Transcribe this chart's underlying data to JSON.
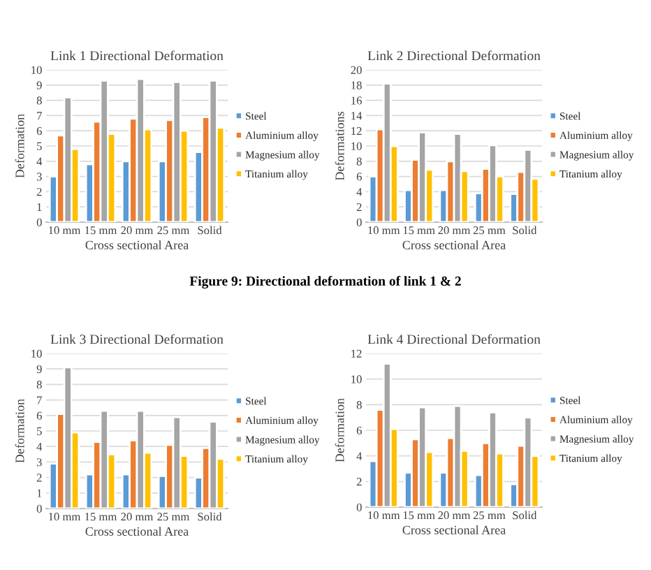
{
  "chart_data": [
    {
      "type": "bar",
      "title": "Link 1 Directional Deformation",
      "xlabel": "Cross sectional Area",
      "ylabel": "Deformation",
      "categories": [
        "10 mm",
        "15 mm",
        "20 mm",
        "25 mm",
        "Solid"
      ],
      "ylim": [
        0,
        10
      ],
      "yticks": [
        0,
        1,
        2,
        3,
        4,
        5,
        6,
        7,
        8,
        9,
        10
      ],
      "grid": "y",
      "legend": "right",
      "annotations": [
        "Figure 9: Directional deformation of link 1 & 2"
      ],
      "series": [
        {
          "name": "Steel",
          "color": "#5b9bd5",
          "values": [
            3.0,
            3.8,
            4.0,
            4.0,
            4.6
          ]
        },
        {
          "name": "Aluminium alloy",
          "color": "#ed7d31",
          "values": [
            5.7,
            6.6,
            6.8,
            6.7,
            6.9
          ]
        },
        {
          "name": "Magnesium alloy",
          "color": "#a5a5a5",
          "values": [
            8.2,
            9.3,
            9.4,
            9.2,
            9.3
          ]
        },
        {
          "name": "Titanium alloy",
          "color": "#ffc000",
          "values": [
            4.8,
            5.8,
            6.1,
            6.0,
            6.2
          ]
        }
      ]
    },
    {
      "type": "bar",
      "title": "Link 2 Directional Deformation",
      "xlabel": "Cross sectional Area",
      "ylabel": "Deformations",
      "categories": [
        "10 mm",
        "15 mm",
        "20 mm",
        "25 mm",
        "Solid"
      ],
      "ylim": [
        0,
        20
      ],
      "yticks": [
        0,
        2,
        4,
        6,
        8,
        10,
        12,
        14,
        16,
        18,
        20
      ],
      "grid": "y",
      "legend": "right",
      "series": [
        {
          "name": "Steel",
          "color": "#5b9bd5",
          "values": [
            6.0,
            4.2,
            4.2,
            3.8,
            3.7
          ]
        },
        {
          "name": "Aluminium alloy",
          "color": "#ed7d31",
          "values": [
            12.2,
            8.2,
            8.0,
            7.0,
            6.6
          ]
        },
        {
          "name": "Magnesium alloy",
          "color": "#a5a5a5",
          "values": [
            18.2,
            11.8,
            11.6,
            10.1,
            9.5
          ]
        },
        {
          "name": "Titanium alloy",
          "color": "#ffc000",
          "values": [
            10.0,
            6.9,
            6.7,
            6.0,
            5.7
          ]
        }
      ]
    },
    {
      "type": "bar",
      "title": "Link 3 Directional Deformation",
      "xlabel": "Cross sectional Area",
      "ylabel": "Deformation",
      "categories": [
        "10 mm",
        "15 mm",
        "20 mm",
        "25 mm",
        "Solid"
      ],
      "ylim": [
        0,
        10
      ],
      "yticks": [
        0,
        1,
        2,
        3,
        4,
        5,
        6,
        7,
        8,
        9,
        10
      ],
      "grid": "y",
      "legend": "right",
      "series": [
        {
          "name": "Steel",
          "color": "#5b9bd5",
          "values": [
            2.9,
            2.2,
            2.2,
            2.1,
            2.0
          ]
        },
        {
          "name": "Aluminium alloy",
          "color": "#ed7d31",
          "values": [
            6.1,
            4.3,
            4.4,
            4.1,
            3.9
          ]
        },
        {
          "name": "Magnesium alloy",
          "color": "#a5a5a5",
          "values": [
            9.1,
            6.3,
            6.3,
            5.9,
            5.6
          ]
        },
        {
          "name": "Titanium alloy",
          "color": "#ffc000",
          "values": [
            4.9,
            3.5,
            3.6,
            3.4,
            3.2
          ]
        }
      ]
    },
    {
      "type": "bar",
      "title": "Link 4 Directional Deformation",
      "xlabel": "Cross sectional Area",
      "ylabel": "Deformation",
      "categories": [
        "10 mm",
        "15 mm",
        "20 mm",
        "25 mm",
        "Solid"
      ],
      "ylim": [
        0,
        12
      ],
      "yticks": [
        0,
        2,
        4,
        6,
        8,
        10,
        12
      ],
      "grid": "y",
      "legend": "right",
      "series": [
        {
          "name": "Steel",
          "color": "#5b9bd5",
          "values": [
            3.6,
            2.7,
            2.7,
            2.5,
            1.8
          ]
        },
        {
          "name": "Aluminium alloy",
          "color": "#ed7d31",
          "values": [
            7.6,
            5.3,
            5.4,
            5.0,
            4.8
          ]
        },
        {
          "name": "Magnesium alloy",
          "color": "#a5a5a5",
          "values": [
            11.2,
            7.8,
            7.9,
            7.4,
            7.0
          ]
        },
        {
          "name": "Titanium alloy",
          "color": "#ffc000",
          "values": [
            6.1,
            4.3,
            4.4,
            4.2,
            4.0
          ]
        }
      ]
    }
  ]
}
